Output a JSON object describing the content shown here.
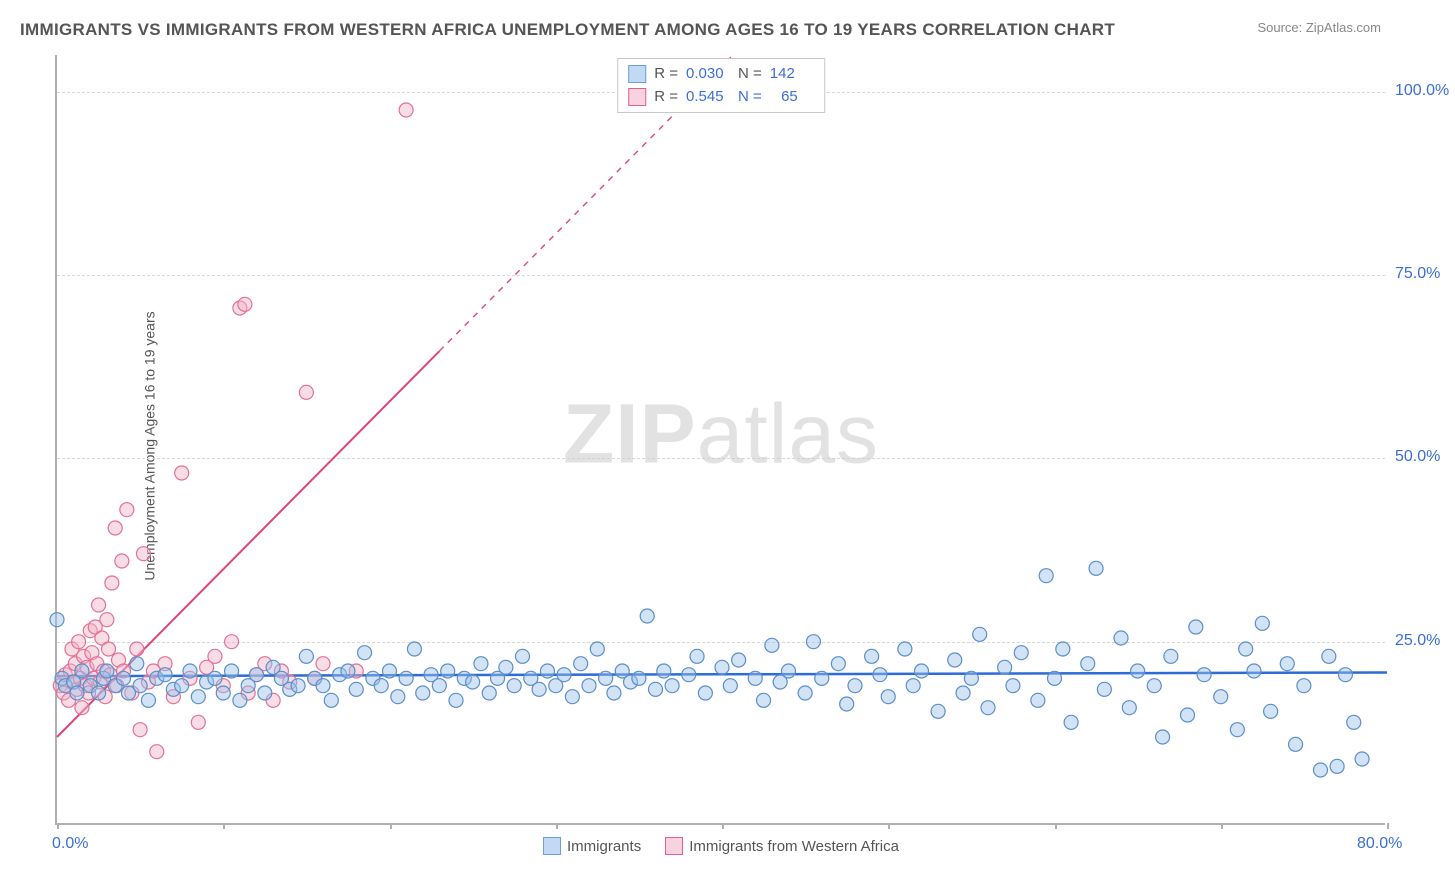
{
  "title": "IMMIGRANTS VS IMMIGRANTS FROM WESTERN AFRICA UNEMPLOYMENT AMONG AGES 16 TO 19 YEARS CORRELATION CHART",
  "source_prefix": "Source: ",
  "source_link": "ZipAtlas.com",
  "y_axis_label": "Unemployment Among Ages 16 to 19 years",
  "watermark_bold": "ZIP",
  "watermark_rest": "atlas",
  "chart": {
    "type": "scatter",
    "xlim": [
      0,
      80
    ],
    "ylim": [
      0,
      105
    ],
    "x_ticks": [
      0,
      10,
      20,
      30,
      40,
      50,
      60,
      70,
      80
    ],
    "x_tick_labels": {
      "0": "0.0%",
      "80": "80.0%"
    },
    "y_gridlines": [
      25,
      50,
      75,
      100
    ],
    "y_tick_labels": {
      "25": "25.0%",
      "50": "50.0%",
      "75": "75.0%",
      "100": "100.0%"
    },
    "background_color": "#ffffff",
    "grid_color": "#d8d8d8",
    "axis_color": "#b0b0b0",
    "tick_label_color": "#3b6fd6",
    "marker_radius": 7,
    "marker_opacity": 0.45,
    "series": [
      {
        "name": "Immigrants",
        "color_fill": "#9cc2ea",
        "color_stroke": "#5b8fc9",
        "R": "0.030",
        "N": "142",
        "trend": {
          "color": "#2d6bd6",
          "width": 2.5,
          "y_at_x0": 20.3,
          "y_at_x80": 20.8,
          "dash": "none"
        },
        "points": [
          [
            0,
            28
          ],
          [
            0.3,
            20
          ],
          [
            0.5,
            19
          ],
          [
            1,
            19.5
          ],
          [
            1.2,
            18
          ],
          [
            1.5,
            21
          ],
          [
            2,
            19
          ],
          [
            2.5,
            18
          ],
          [
            2.8,
            20
          ],
          [
            3,
            21
          ],
          [
            3.5,
            19
          ],
          [
            4,
            20
          ],
          [
            4.3,
            18
          ],
          [
            4.8,
            22
          ],
          [
            5,
            19
          ],
          [
            5.5,
            17
          ],
          [
            6,
            20
          ],
          [
            6.5,
            20.5
          ],
          [
            7,
            18.5
          ],
          [
            7.5,
            19
          ],
          [
            8,
            21
          ],
          [
            8.5,
            17.5
          ],
          [
            9,
            19.5
          ],
          [
            9.5,
            20
          ],
          [
            10,
            18
          ],
          [
            10.5,
            21
          ],
          [
            11,
            17
          ],
          [
            11.5,
            19
          ],
          [
            12,
            20.5
          ],
          [
            12.5,
            18
          ],
          [
            13,
            21.5
          ],
          [
            13.5,
            20
          ],
          [
            14,
            18.5
          ],
          [
            14.5,
            19
          ],
          [
            15,
            23
          ],
          [
            15.5,
            20
          ],
          [
            16,
            19
          ],
          [
            16.5,
            17
          ],
          [
            17,
            20.5
          ],
          [
            17.5,
            21
          ],
          [
            18,
            18.5
          ],
          [
            18.5,
            23.5
          ],
          [
            19,
            20
          ],
          [
            19.5,
            19
          ],
          [
            20,
            21
          ],
          [
            20.5,
            17.5
          ],
          [
            21,
            20
          ],
          [
            21.5,
            24
          ],
          [
            22,
            18
          ],
          [
            22.5,
            20.5
          ],
          [
            23,
            19
          ],
          [
            23.5,
            21
          ],
          [
            24,
            17
          ],
          [
            24.5,
            20
          ],
          [
            25,
            19.5
          ],
          [
            25.5,
            22
          ],
          [
            26,
            18
          ],
          [
            26.5,
            20
          ],
          [
            27,
            21.5
          ],
          [
            27.5,
            19
          ],
          [
            28,
            23
          ],
          [
            28.5,
            20
          ],
          [
            29,
            18.5
          ],
          [
            29.5,
            21
          ],
          [
            30,
            19
          ],
          [
            30.5,
            20.5
          ],
          [
            31,
            17.5
          ],
          [
            31.5,
            22
          ],
          [
            32,
            19
          ],
          [
            32.5,
            24
          ],
          [
            33,
            20
          ],
          [
            33.5,
            18
          ],
          [
            34,
            21
          ],
          [
            34.5,
            19.5
          ],
          [
            35,
            20
          ],
          [
            35.5,
            28.5
          ],
          [
            36,
            18.5
          ],
          [
            36.5,
            21
          ],
          [
            37,
            19
          ],
          [
            38,
            20.5
          ],
          [
            38.5,
            23
          ],
          [
            39,
            18
          ],
          [
            40,
            21.5
          ],
          [
            40.5,
            19
          ],
          [
            41,
            22.5
          ],
          [
            42,
            20
          ],
          [
            42.5,
            17
          ],
          [
            43,
            24.5
          ],
          [
            43.5,
            19.5
          ],
          [
            44,
            21
          ],
          [
            45,
            18
          ],
          [
            45.5,
            25
          ],
          [
            46,
            20
          ],
          [
            47,
            22
          ],
          [
            47.5,
            16.5
          ],
          [
            48,
            19
          ],
          [
            49,
            23
          ],
          [
            49.5,
            20.5
          ],
          [
            50,
            17.5
          ],
          [
            51,
            24
          ],
          [
            51.5,
            19
          ],
          [
            52,
            21
          ],
          [
            53,
            15.5
          ],
          [
            54,
            22.5
          ],
          [
            54.5,
            18
          ],
          [
            55,
            20
          ],
          [
            55.5,
            26
          ],
          [
            56,
            16
          ],
          [
            57,
            21.5
          ],
          [
            57.5,
            19
          ],
          [
            58,
            23.5
          ],
          [
            59,
            17
          ],
          [
            59.5,
            34
          ],
          [
            60,
            20
          ],
          [
            60.5,
            24
          ],
          [
            61,
            14
          ],
          [
            62,
            22
          ],
          [
            62.5,
            35
          ],
          [
            63,
            18.5
          ],
          [
            64,
            25.5
          ],
          [
            64.5,
            16
          ],
          [
            65,
            21
          ],
          [
            66,
            19
          ],
          [
            66.5,
            12
          ],
          [
            67,
            23
          ],
          [
            68,
            15
          ],
          [
            68.5,
            27
          ],
          [
            69,
            20.5
          ],
          [
            70,
            17.5
          ],
          [
            71,
            13
          ],
          [
            71.5,
            24
          ],
          [
            72,
            21
          ],
          [
            72.5,
            27.5
          ],
          [
            73,
            15.5
          ],
          [
            74,
            22
          ],
          [
            74.5,
            11
          ],
          [
            75,
            19
          ],
          [
            76,
            7.5
          ],
          [
            76.5,
            23
          ],
          [
            77,
            8
          ],
          [
            77.5,
            20.5
          ],
          [
            78,
            14
          ],
          [
            78.5,
            9
          ]
        ]
      },
      {
        "name": "Immigrants from Western Africa",
        "color_fill": "#f2b4c6",
        "color_stroke": "#e47097",
        "R": "0.545",
        "N": "65",
        "trend": {
          "color": "#e0457a",
          "width": 2,
          "y_at_x0": 12,
          "y_at_x80": 195,
          "dash_after_x": 23
        },
        "points": [
          [
            0.2,
            19
          ],
          [
            0.4,
            18
          ],
          [
            0.5,
            20.5
          ],
          [
            0.7,
            17
          ],
          [
            0.8,
            21
          ],
          [
            0.9,
            24
          ],
          [
            1,
            19.5
          ],
          [
            1.1,
            22
          ],
          [
            1.2,
            18.5
          ],
          [
            1.3,
            25
          ],
          [
            1.4,
            20
          ],
          [
            1.5,
            16
          ],
          [
            1.6,
            23
          ],
          [
            1.7,
            19
          ],
          [
            1.8,
            21.5
          ],
          [
            1.9,
            18
          ],
          [
            2,
            26.5
          ],
          [
            2.1,
            23.5
          ],
          [
            2.2,
            20
          ],
          [
            2.3,
            27
          ],
          [
            2.4,
            22
          ],
          [
            2.5,
            30
          ],
          [
            2.6,
            19.5
          ],
          [
            2.7,
            25.5
          ],
          [
            2.8,
            21
          ],
          [
            2.9,
            17.5
          ],
          [
            3,
            28
          ],
          [
            3.1,
            24
          ],
          [
            3.2,
            20.5
          ],
          [
            3.3,
            33
          ],
          [
            3.5,
            40.5
          ],
          [
            3.6,
            19
          ],
          [
            3.7,
            22.5
          ],
          [
            3.9,
            36
          ],
          [
            4,
            21
          ],
          [
            4.2,
            43
          ],
          [
            4.5,
            18
          ],
          [
            4.8,
            24
          ],
          [
            5,
            13
          ],
          [
            5.2,
            37
          ],
          [
            5.5,
            19.5
          ],
          [
            5.8,
            21
          ],
          [
            6,
            10
          ],
          [
            6.5,
            22
          ],
          [
            7,
            17.5
          ],
          [
            7.5,
            48
          ],
          [
            8,
            20
          ],
          [
            8.5,
            14
          ],
          [
            9,
            21.5
          ],
          [
            9.5,
            23
          ],
          [
            10,
            19
          ],
          [
            10.5,
            25
          ],
          [
            11,
            70.5
          ],
          [
            11.3,
            71
          ],
          [
            11.5,
            18
          ],
          [
            12,
            20.5
          ],
          [
            12.5,
            22
          ],
          [
            13,
            17
          ],
          [
            13.5,
            21
          ],
          [
            14,
            19.5
          ],
          [
            15,
            59
          ],
          [
            15.5,
            20
          ],
          [
            16,
            22
          ],
          [
            18,
            21
          ],
          [
            21,
            97.5
          ]
        ]
      }
    ]
  },
  "legend_top": {
    "r_label": "R =",
    "n_label": "N ="
  },
  "legend_bottom": {
    "items": [
      "Immigrants",
      "Immigrants from Western Africa"
    ]
  }
}
